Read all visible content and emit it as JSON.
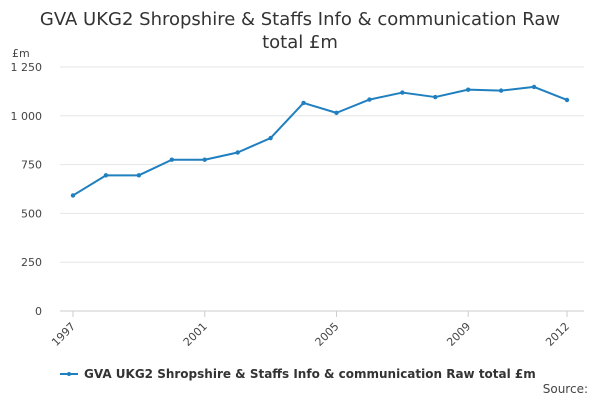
{
  "chart_data": {
    "type": "line",
    "title_lines": [
      "GVA UKG2 Shropshire & Staffs Info & communication Raw",
      "total £m"
    ],
    "ylabel": "£m",
    "xlabel": "",
    "ylim": [
      0,
      1250
    ],
    "xlim": [
      1997,
      2012
    ],
    "y_ticks": [
      {
        "value": 0,
        "label": "0"
      },
      {
        "value": 250,
        "label": "250"
      },
      {
        "value": 500,
        "label": "500"
      },
      {
        "value": 750,
        "label": "750"
      },
      {
        "value": 1000,
        "label": "1 000"
      },
      {
        "value": 1250,
        "label": "1 250"
      }
    ],
    "x_ticks": [
      {
        "value": 1997,
        "label": "1997"
      },
      {
        "value": 2001,
        "label": "2001"
      },
      {
        "value": 2005,
        "label": "2005"
      },
      {
        "value": 2009,
        "label": "2009"
      },
      {
        "value": 2012,
        "label": "2012"
      }
    ],
    "grid": true,
    "legend_position": "bottom-left",
    "series": [
      {
        "name": "GVA UKG2 Shropshire & Staffs Info & communication Raw total £m",
        "color": "#1f7fbf",
        "x": [
          1997,
          1998,
          1999,
          2000,
          2001,
          2002,
          2003,
          2004,
          2005,
          2006,
          2007,
          2008,
          2009,
          2010,
          2011,
          2012
        ],
        "values": [
          592,
          695,
          695,
          775,
          775,
          812,
          886,
          1066,
          1015,
          1083,
          1119,
          1096,
          1134,
          1129,
          1148,
          1081
        ]
      }
    ]
  },
  "source_label": "Source:"
}
